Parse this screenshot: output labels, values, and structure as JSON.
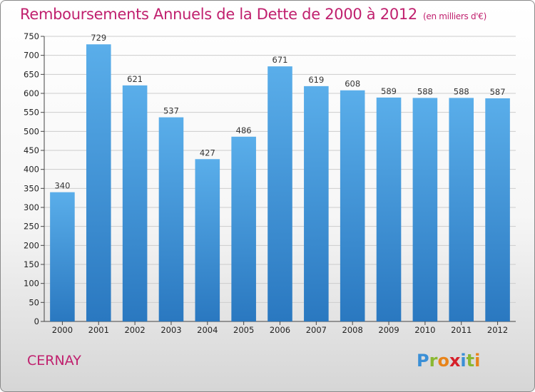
{
  "title": "Remboursements Annuels de la Dette de 2000 à 2012",
  "subtitle": "(en milliers d'€)",
  "city": "CERNAY",
  "logo": {
    "text": "Proxiti",
    "letters": [
      {
        "ch": "P",
        "color": "#3a8fd6"
      },
      {
        "ch": "r",
        "color": "#8ab832"
      },
      {
        "ch": "o",
        "color": "#e8841a"
      },
      {
        "ch": "x",
        "color": "#d6202a"
      },
      {
        "ch": "i",
        "color": "#3a8fd6"
      },
      {
        "ch": "t",
        "color": "#8ab832"
      },
      {
        "ch": "i",
        "color": "#e8841a"
      }
    ]
  },
  "colors": {
    "title": "#c0206e",
    "bar_top": "#5aaeea",
    "bar_bottom": "#2a78c0",
    "grid": "#cccccc"
  },
  "chart_data": {
    "type": "bar",
    "title": "Remboursements Annuels de la Dette de 2000 à 2012",
    "subtitle": "(en milliers d'€)",
    "categories": [
      "2000",
      "2001",
      "2002",
      "2003",
      "2004",
      "2005",
      "2006",
      "2007",
      "2008",
      "2009",
      "2010",
      "2011",
      "2012"
    ],
    "values": [
      340,
      729,
      621,
      537,
      427,
      486,
      671,
      619,
      608,
      589,
      588,
      588,
      587
    ],
    "ylim": [
      0,
      750
    ],
    "yticks": [
      0,
      50,
      100,
      150,
      200,
      250,
      300,
      350,
      400,
      450,
      500,
      550,
      600,
      650,
      700,
      750
    ],
    "grid": true,
    "xlabel": "",
    "ylabel": ""
  }
}
